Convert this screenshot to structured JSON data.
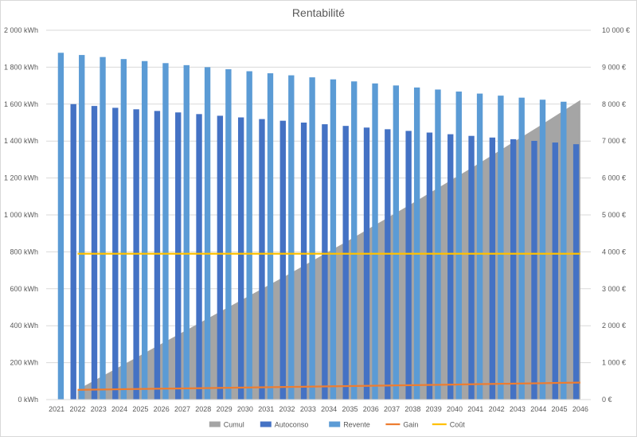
{
  "chart_data": {
    "type": "bar",
    "title": "Rentabilité",
    "categories": [
      "2021",
      "2022",
      "2023",
      "2024",
      "2025",
      "2026",
      "2027",
      "2028",
      "2029",
      "2030",
      "2031",
      "2032",
      "2033",
      "2034",
      "2035",
      "2036",
      "2037",
      "2038",
      "2039",
      "2040",
      "2041",
      "2042",
      "2043",
      "2044",
      "2045",
      "2046"
    ],
    "y_left": {
      "ylim": [
        0,
        2000
      ],
      "ticks": [
        0,
        200,
        400,
        600,
        800,
        1000,
        1200,
        1400,
        1600,
        1800,
        2000
      ],
      "tick_labels": [
        "0 kWh",
        "200 kWh",
        "400 kWh",
        "600 kWh",
        "800 kWh",
        "1 000 kWh",
        "1 200 kWh",
        "1 400 kWh",
        "1 600 kWh",
        "1 800 kWh",
        "2 000 kWh"
      ]
    },
    "y_right": {
      "ylim": [
        0,
        10000
      ],
      "ticks": [
        0,
        1000,
        2000,
        3000,
        4000,
        5000,
        6000,
        7000,
        8000,
        9000,
        10000
      ],
      "tick_labels": [
        "0 €",
        "1 000 €",
        "2 000 €",
        "3 000 €",
        "4 000 €",
        "5 000 €",
        "6 000 €",
        "7 000 €",
        "8 000 €",
        "9 000 €",
        "10 000 €"
      ]
    },
    "grid": true,
    "legend_position": "bottom",
    "series": [
      {
        "name": "Cumul",
        "kind": "area",
        "axis": "right",
        "color": "#a5a5a5",
        "values": [
          null,
          270,
          580,
          890,
          1200,
          1510,
          1820,
          2130,
          2440,
          2750,
          3060,
          3370,
          3690,
          4010,
          4330,
          4660,
          4990,
          5320,
          5660,
          6000,
          6340,
          6690,
          7040,
          7390,
          7750,
          8110
        ]
      },
      {
        "name": "Autoconso",
        "kind": "bar",
        "axis": "left",
        "color": "#4472c4",
        "values": [
          null,
          1600,
          1590,
          1580,
          1572,
          1563,
          1555,
          1546,
          1537,
          1528,
          1519,
          1510,
          1500,
          1491,
          1482,
          1473,
          1464,
          1455,
          1446,
          1437,
          1428,
          1419,
          1410,
          1401,
          1392,
          1383
        ]
      },
      {
        "name": "Revente",
        "kind": "bar",
        "axis": "left",
        "color": "#5b9bd5",
        "values": [
          1878,
          1866,
          1855,
          1844,
          1833,
          1822,
          1811,
          1800,
          1789,
          1778,
          1767,
          1756,
          1745,
          1734,
          1723,
          1712,
          1701,
          1690,
          1679,
          1668,
          1657,
          1646,
          1635,
          1624,
          1613,
          null
        ]
      },
      {
        "name": "Gain",
        "kind": "line",
        "axis": "right",
        "color": "#ed7d31",
        "values": [
          null,
          265,
          272,
          280,
          287,
          295,
          302,
          310,
          318,
          326,
          334,
          342,
          350,
          358,
          366,
          374,
          383,
          391,
          400,
          408,
          417,
          426,
          434,
          443,
          452,
          461
        ]
      },
      {
        "name": "Coût",
        "kind": "line",
        "axis": "right",
        "color": "#ffc000",
        "values": [
          null,
          3950,
          3950,
          3950,
          3950,
          3950,
          3950,
          3950,
          3950,
          3950,
          3950,
          3950,
          3950,
          3950,
          3950,
          3950,
          3950,
          3950,
          3950,
          3950,
          3950,
          3950,
          3950,
          3950,
          3950,
          3950
        ]
      }
    ]
  }
}
